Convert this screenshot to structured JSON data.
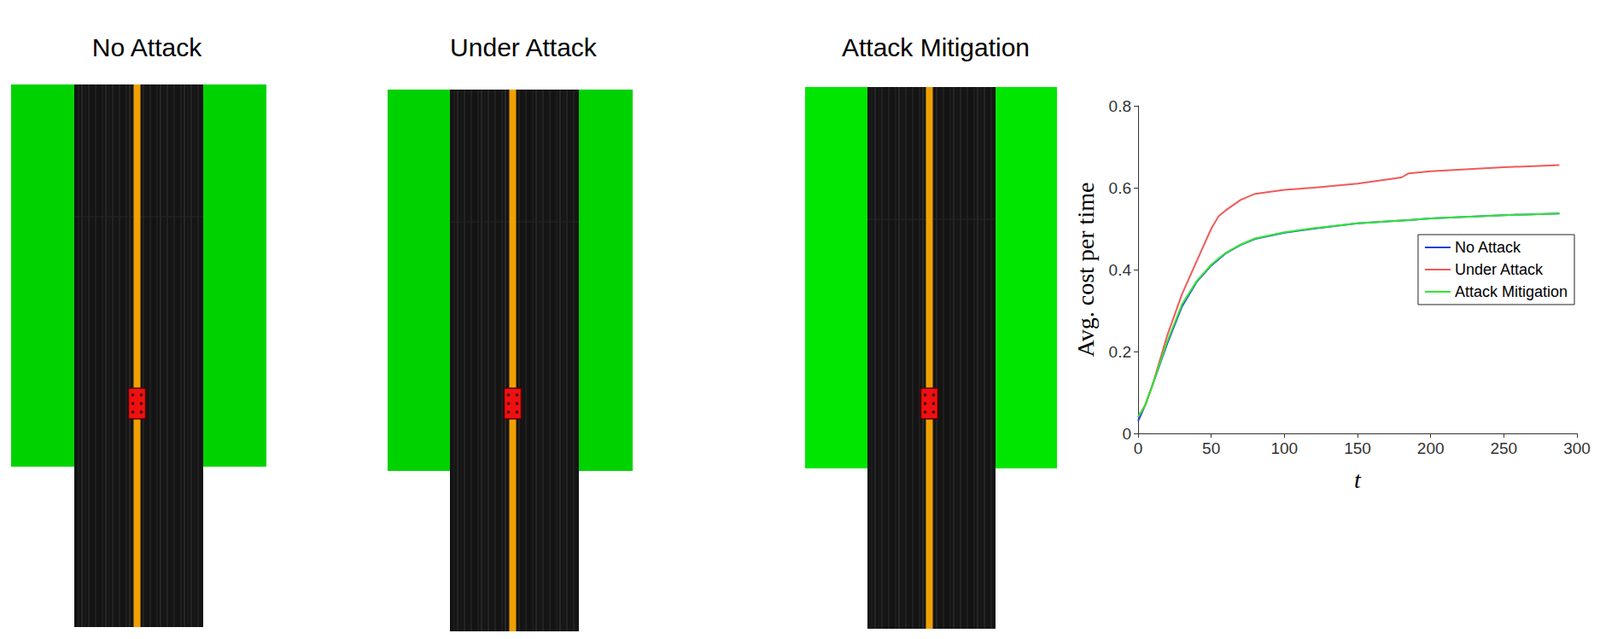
{
  "panels": [
    "No Attack",
    "Under Attack",
    "Attack Mitigation"
  ],
  "chart_data": {
    "type": "line",
    "xlabel": "t",
    "ylabel": "Avg. cost per time",
    "x": [
      0,
      5,
      10,
      20,
      30,
      40,
      45,
      50,
      55,
      60,
      70,
      80,
      100,
      120,
      150,
      180,
      185,
      200,
      250,
      288
    ],
    "series": [
      {
        "name": "No Attack",
        "color": "#1f3fe0",
        "values": [
          0.03,
          0.07,
          0.12,
          0.22,
          0.31,
          0.37,
          0.39,
          0.41,
          0.425,
          0.44,
          0.46,
          0.475,
          0.49,
          0.5,
          0.513,
          0.52,
          0.521,
          0.525,
          0.533,
          0.537
        ]
      },
      {
        "name": "Under Attack",
        "color": "#f05a5a",
        "values": [
          0.04,
          0.07,
          0.12,
          0.24,
          0.34,
          0.42,
          0.46,
          0.5,
          0.53,
          0.545,
          0.57,
          0.585,
          0.595,
          0.6,
          0.61,
          0.625,
          0.635,
          0.64,
          0.65,
          0.655
        ]
      },
      {
        "name": "Attack Mitigation",
        "color": "#33e633",
        "values": [
          0.04,
          0.07,
          0.12,
          0.225,
          0.315,
          0.372,
          0.392,
          0.412,
          0.427,
          0.441,
          0.461,
          0.476,
          0.491,
          0.501,
          0.513,
          0.52,
          0.521,
          0.525,
          0.533,
          0.537
        ]
      }
    ],
    "xlim": [
      0,
      300
    ],
    "xticks": [
      0,
      50,
      100,
      150,
      200,
      250,
      300
    ],
    "ylim": [
      0,
      0.8
    ],
    "yticks": [
      0,
      0.2,
      0.4,
      0.6,
      0.8
    ],
    "grid": false,
    "legend": "right"
  }
}
